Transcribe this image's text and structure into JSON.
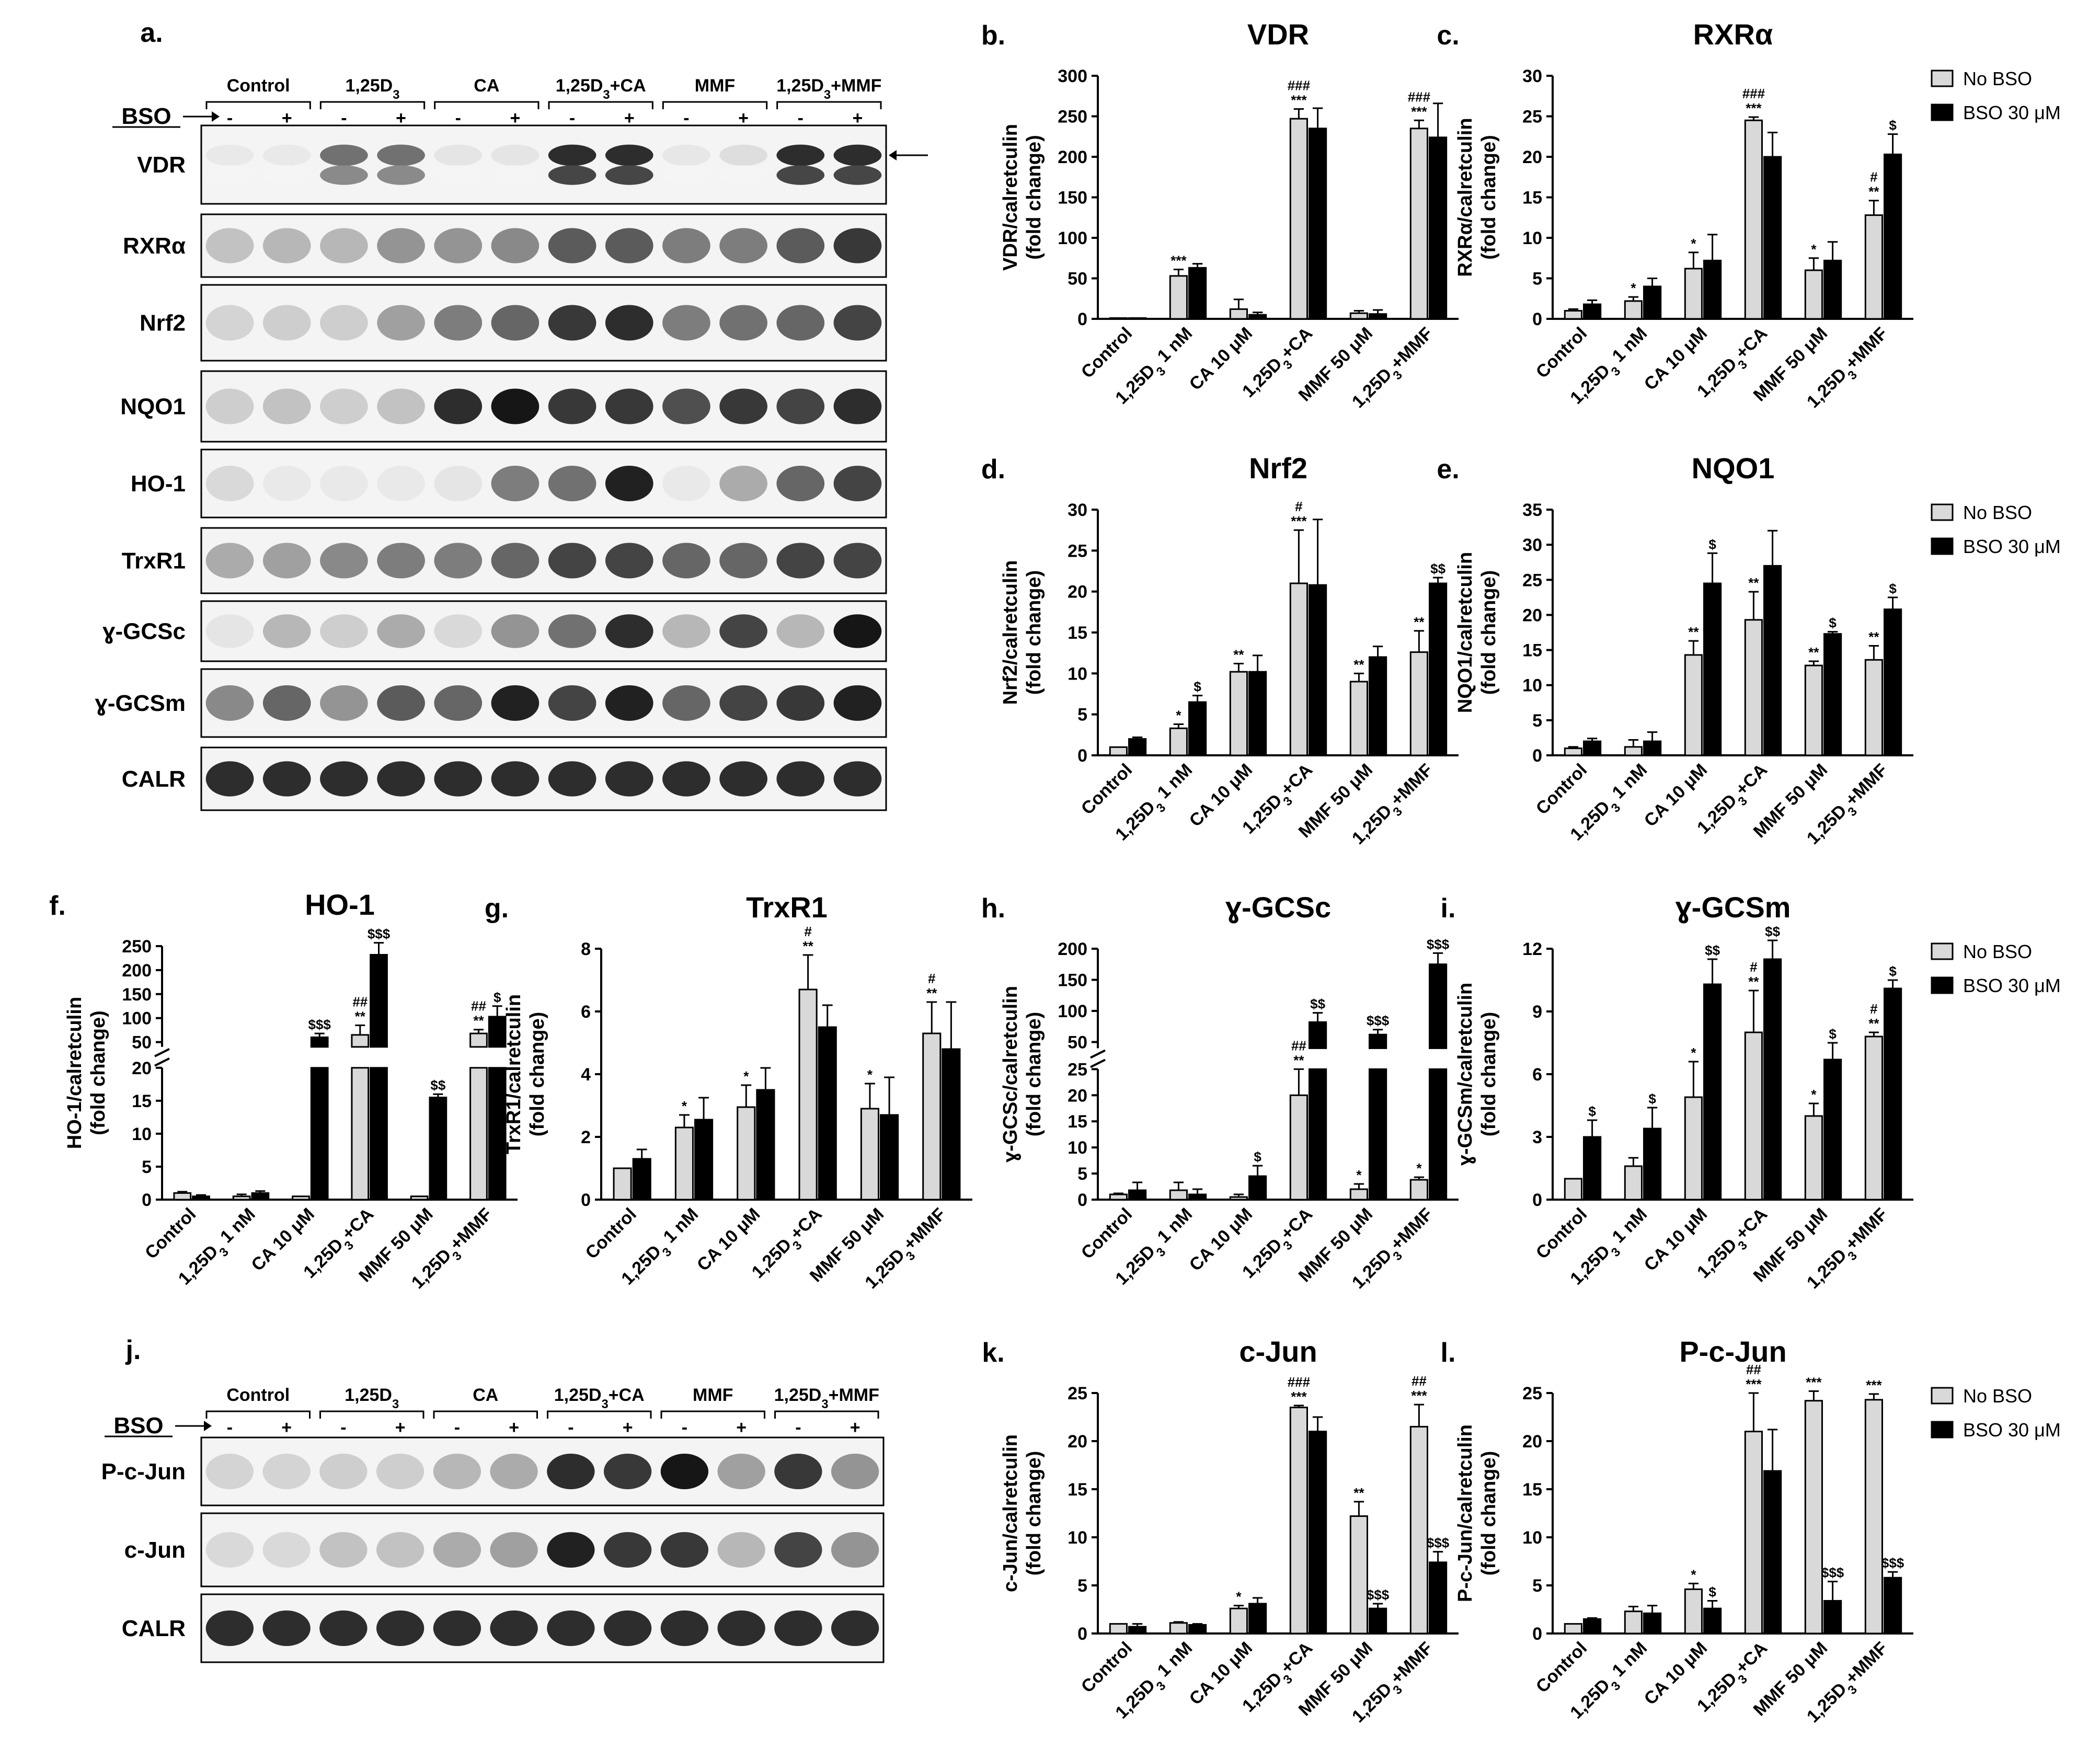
{
  "colors": {
    "no_bso": "#d9d9d9",
    "bso": "#000000",
    "axis": "#000000"
  },
  "legend": {
    "no_bso": "No BSO",
    "bso": "BSO 30 μM"
  },
  "blots": {
    "top": {
      "letter": "a.",
      "bso_label": "BSO",
      "groups": [
        "Control",
        "1,25D3",
        "CA",
        "1,25D3+CA",
        "MMF",
        "1,25D3+MMF"
      ],
      "signs": [
        "-",
        "+"
      ],
      "rows": [
        "VDR",
        "RXRα",
        "Nrf2",
        "NQO1",
        "HO-1",
        "TrxR1",
        "ɣ-GCSc",
        "ɣ-GCSm",
        "CALR"
      ]
    },
    "bottom": {
      "letter": "j.",
      "bso_label": "BSO",
      "groups": [
        "Control",
        "1,25D3",
        "CA",
        "1,25D3+CA",
        "MMF",
        "1,25D3+MMF"
      ],
      "signs": [
        "-",
        "+"
      ],
      "rows": [
        "P-c-Jun",
        "c-Jun",
        "CALR"
      ]
    }
  },
  "chart_data": [
    {
      "panel": "b.",
      "title": "VDR",
      "type": "bar",
      "ylabel": [
        "VDR/calretculin",
        "(fold change)"
      ],
      "categories": [
        "Control",
        "1,25D3 1 nM",
        "CA 10 μM",
        "1,25D3+CA",
        "MMF 50 μM",
        "1,25D3+MMF"
      ],
      "ylim": [
        0,
        300
      ],
      "yticks": [
        0,
        50,
        100,
        150,
        200,
        250,
        300
      ],
      "series": [
        {
          "name": "No BSO",
          "values": [
            1,
            53,
            12,
            247,
            7,
            235
          ],
          "errors": [
            0,
            8,
            12,
            12,
            3,
            10
          ],
          "sig": [
            [],
            [
              "***"
            ],
            [],
            [
              "###",
              "***"
            ],
            [],
            [
              "###",
              "***"
            ]
          ]
        },
        {
          "name": "BSO 30 μM",
          "values": [
            1,
            63,
            5,
            235,
            6,
            224
          ],
          "errors": [
            0,
            5,
            3,
            25,
            5,
            42
          ],
          "sig": [
            [],
            [],
            [],
            [],
            [],
            []
          ]
        }
      ]
    },
    {
      "panel": "c.",
      "title": "RXRα",
      "type": "bar",
      "ylabel": [
        "RXRα/calretculin",
        "(fold change)"
      ],
      "categories": [
        "Control",
        "1,25D3 1 nM",
        "CA 10 μM",
        "1,25D3+CA",
        "MMF 50 μM",
        "1,25D3+MMF"
      ],
      "ylim": [
        0,
        30
      ],
      "yticks": [
        0,
        5,
        10,
        15,
        20,
        25,
        30
      ],
      "legend": true,
      "series": [
        {
          "name": "No BSO",
          "values": [
            1,
            2.2,
            6.2,
            24.5,
            6.0,
            12.8
          ],
          "errors": [
            0.2,
            0.5,
            2.0,
            0.4,
            1.5,
            1.8
          ],
          "sig": [
            [],
            [
              "*"
            ],
            [
              "*"
            ],
            [
              "###",
              "***"
            ],
            [
              "*"
            ],
            [
              "#",
              "**"
            ]
          ]
        },
        {
          "name": "BSO 30 μM",
          "values": [
            1.8,
            4.0,
            7.2,
            20.0,
            7.2,
            20.3
          ],
          "errors": [
            0.5,
            1.0,
            3.2,
            3.0,
            2.3,
            2.5
          ],
          "sig": [
            [],
            [],
            [],
            [],
            [],
            [
              "$"
            ]
          ]
        }
      ]
    },
    {
      "panel": "d.",
      "title": "Nrf2",
      "type": "bar",
      "ylabel": [
        "Nrf2/calretculin",
        "(fold change)"
      ],
      "categories": [
        "Control",
        "1,25D3 1 nM",
        "CA 10 μM",
        "1,25D3+CA",
        "MMF 50 μM",
        "1,25D3+MMF"
      ],
      "ylim": [
        0,
        30
      ],
      "yticks": [
        0,
        5,
        10,
        15,
        20,
        25,
        30
      ],
      "series": [
        {
          "name": "No BSO",
          "values": [
            1,
            3.3,
            10.2,
            21.0,
            9.0,
            12.6
          ],
          "errors": [
            0,
            0.5,
            1.0,
            6.5,
            1.0,
            2.6
          ],
          "sig": [
            [],
            [
              "*"
            ],
            [
              "**"
            ],
            [
              "#",
              "***"
            ],
            [
              "**"
            ],
            [
              "**"
            ]
          ]
        },
        {
          "name": "BSO 30 μM",
          "values": [
            2.0,
            6.5,
            10.2,
            20.8,
            12.0,
            21.0
          ],
          "errors": [
            0.2,
            0.8,
            2.0,
            8.0,
            1.3,
            0.7
          ],
          "sig": [
            [],
            [
              "$"
            ],
            [],
            [],
            [],
            [
              "$$"
            ]
          ]
        }
      ]
    },
    {
      "panel": "e.",
      "title": "NQO1",
      "type": "bar",
      "ylabel": [
        "NQO1/calretculin",
        "(fold change)"
      ],
      "categories": [
        "Control",
        "1,25D3 1 nM",
        "CA 10 μM",
        "1,25D3+CA",
        "MMF 50 μM",
        "1,25D3+MMF"
      ],
      "ylim": [
        0,
        35
      ],
      "yticks": [
        0,
        5,
        10,
        15,
        20,
        25,
        30,
        35
      ],
      "legend": true,
      "series": [
        {
          "name": "No BSO",
          "values": [
            1,
            1.2,
            14.3,
            19.3,
            12.8,
            13.6
          ],
          "errors": [
            0.2,
            1.0,
            2.0,
            4.0,
            0.6,
            2.0
          ],
          "sig": [
            [],
            [],
            [
              "**"
            ],
            [
              "**"
            ],
            [
              "**"
            ],
            [
              "**"
            ]
          ]
        },
        {
          "name": "BSO 30 μM",
          "values": [
            2.0,
            2.0,
            24.5,
            27.0,
            17.3,
            20.8
          ],
          "errors": [
            0.4,
            1.3,
            4.3,
            5.0,
            0.3,
            1.7
          ],
          "sig": [
            [],
            [],
            [
              "$"
            ],
            [],
            [
              "$"
            ],
            [
              "$"
            ]
          ]
        }
      ]
    },
    {
      "panel": "f.",
      "title": "HO-1",
      "type": "bar-broken",
      "ylabel": [
        "HO-1/calretculin",
        "(fold change)"
      ],
      "categories": [
        "Control",
        "1,25D3 1 nM",
        "CA 10 μM",
        "1,25D3+CA",
        "MMF 50 μM",
        "1,25D3+MMF"
      ],
      "lower_ticks": [
        0,
        5,
        10,
        15,
        20
      ],
      "upper_ticks": [
        50,
        100,
        150,
        200,
        250
      ],
      "break": [
        20,
        40
      ],
      "series": [
        {
          "name": "No BSO",
          "values": [
            1,
            0.5,
            0.5,
            65,
            0.5,
            68
          ],
          "errors": [
            0.2,
            0.3,
            0,
            20,
            0,
            8
          ],
          "sig": [
            [],
            [],
            [],
            [
              "##",
              "**"
            ],
            [],
            [
              "##",
              "**"
            ]
          ]
        },
        {
          "name": "BSO 30 μM",
          "values": [
            0.5,
            1.0,
            60,
            232,
            15.5,
            103
          ],
          "errors": [
            0.2,
            0.3,
            8,
            25,
            0.5,
            22
          ],
          "sig": [
            [],
            [],
            [
              "$$$"
            ],
            [
              "$$$"
            ],
            [
              "$$"
            ],
            [
              "$"
            ]
          ]
        }
      ]
    },
    {
      "panel": "g.",
      "title": "TrxR1",
      "type": "bar",
      "ylabel": [
        "TrxR1/calretculin",
        "(fold change)"
      ],
      "categories": [
        "Control",
        "1,25D3 1 nM",
        "CA 10 μM",
        "1,25D3+CA",
        "MMF 50 μM",
        "1,25D3+MMF"
      ],
      "ylim": [
        0,
        8
      ],
      "yticks": [
        0,
        2,
        4,
        6,
        8
      ],
      "series": [
        {
          "name": "No BSO",
          "values": [
            1,
            2.3,
            2.95,
            6.7,
            2.9,
            5.3
          ],
          "errors": [
            0,
            0.4,
            0.7,
            1.1,
            0.8,
            1.0
          ],
          "sig": [
            [],
            [
              "*"
            ],
            [
              "*"
            ],
            [
              "#",
              "**"
            ],
            [
              "*"
            ],
            [
              "#",
              "**"
            ]
          ]
        },
        {
          "name": "BSO 30 μM",
          "values": [
            1.3,
            2.55,
            3.5,
            5.5,
            2.7,
            4.8
          ],
          "errors": [
            0.3,
            0.7,
            0.7,
            0.7,
            1.2,
            1.5
          ],
          "sig": [
            [],
            [],
            [],
            [],
            [],
            []
          ]
        }
      ]
    },
    {
      "panel": "h.",
      "title": "ɣ-GCSc",
      "type": "bar-broken",
      "ylabel": [
        "ɣ-GCSc/calretculin",
        "(fold change)"
      ],
      "categories": [
        "Control",
        "1,25D3 1 nM",
        "CA 10 μM",
        "1,25D3+CA",
        "MMF 50 μM",
        "1,25D3+MMF"
      ],
      "lower_ticks": [
        0,
        5,
        10,
        15,
        20,
        25
      ],
      "upper_ticks": [
        50,
        100,
        150,
        200
      ],
      "break": [
        25,
        40
      ],
      "series": [
        {
          "name": "No BSO",
          "values": [
            1,
            1.8,
            0.5,
            20,
            2.0,
            3.8
          ],
          "errors": [
            0.2,
            1.5,
            0.5,
            5,
            1.0,
            0.5
          ],
          "sig": [
            [],
            [],
            [],
            [
              "##",
              "**"
            ],
            [
              "*"
            ],
            [
              "*"
            ]
          ]
        },
        {
          "name": "BSO 30 μM",
          "values": [
            1.8,
            1.0,
            4.5,
            82,
            62,
            175
          ],
          "errors": [
            1.5,
            1.0,
            2.0,
            15,
            8,
            18
          ],
          "sig": [
            [],
            [],
            [
              "$"
            ],
            [
              "$$"
            ],
            [
              "$$$"
            ],
            [
              "$$$"
            ]
          ]
        }
      ]
    },
    {
      "panel": "i.",
      "title": "ɣ-GCSm",
      "type": "bar",
      "ylabel": [
        "ɣ-GCSm/calretculin",
        "(fold change)"
      ],
      "categories": [
        "Control",
        "1,25D3 1 nM",
        "CA 10 μM",
        "1,25D3+CA",
        "MMF 50 μM",
        "1,25D3+MMF"
      ],
      "ylim": [
        0,
        12
      ],
      "yticks": [
        0,
        3,
        6,
        9,
        12
      ],
      "legend": true,
      "series": [
        {
          "name": "No BSO",
          "values": [
            1,
            1.6,
            4.9,
            8.0,
            4.0,
            7.8
          ],
          "errors": [
            0,
            0.4,
            1.7,
            2.0,
            0.6,
            0.2
          ],
          "sig": [
            [],
            [],
            [
              "*"
            ],
            [
              "#",
              "**"
            ],
            [
              "*"
            ],
            [
              "#",
              "**"
            ]
          ]
        },
        {
          "name": "BSO 30 μM",
          "values": [
            3.0,
            3.4,
            10.3,
            11.5,
            6.7,
            10.1
          ],
          "errors": [
            0.8,
            1.0,
            1.2,
            0.9,
            0.8,
            0.4
          ],
          "sig": [
            [
              "$"
            ],
            [
              "$"
            ],
            [
              "$$"
            ],
            [
              "$$"
            ],
            [
              "$"
            ],
            [
              "$"
            ]
          ]
        }
      ]
    },
    {
      "panel": "k.",
      "title": "c-Jun",
      "type": "bar",
      "ylabel": [
        "c-Jun/calretculin",
        "(fold change)"
      ],
      "categories": [
        "Control",
        "1,25D3 1 nM",
        "CA 10 μM",
        "1,25D3+CA",
        "MMF 50 μM",
        "1,25D3+MMF"
      ],
      "ylim": [
        0,
        25
      ],
      "yticks": [
        0,
        5,
        10,
        15,
        20,
        25
      ],
      "series": [
        {
          "name": "No BSO",
          "values": [
            1,
            1.1,
            2.6,
            23.5,
            12.2,
            21.5
          ],
          "errors": [
            0,
            0.1,
            0.3,
            0.2,
            1.5,
            2.3
          ],
          "sig": [
            [],
            [],
            [
              "*"
            ],
            [
              "###",
              "***"
            ],
            [
              "**"
            ],
            [
              "##",
              "***"
            ]
          ]
        },
        {
          "name": "BSO 30 μM",
          "values": [
            0.7,
            0.9,
            3.1,
            21.0,
            2.6,
            7.4
          ],
          "errors": [
            0.3,
            0.1,
            0.6,
            1.5,
            0.5,
            1.1
          ],
          "sig": [
            [],
            [],
            [],
            [],
            [
              "$$$"
            ],
            [
              "$$$"
            ]
          ]
        }
      ]
    },
    {
      "panel": "l.",
      "title": "P-c-Jun",
      "type": "bar",
      "ylabel": [
        "P-c-Jun/calretculin",
        "(fold change)"
      ],
      "categories": [
        "Control",
        "1,25D3 1 nM",
        "CA 10 μM",
        "1,25D3+CA",
        "MMF 50 μM",
        "1,25D3+MMF"
      ],
      "ylim": [
        0,
        25
      ],
      "yticks": [
        0,
        5,
        10,
        15,
        20,
        25
      ],
      "legend": true,
      "series": [
        {
          "name": "No BSO",
          "values": [
            1,
            2.3,
            4.6,
            21.0,
            24.2,
            24.3
          ],
          "errors": [
            0,
            0.5,
            0.6,
            4.0,
            1.0,
            0.6
          ],
          "sig": [
            [],
            [],
            [
              "*"
            ],
            [
              "##",
              "***"
            ],
            [
              "***"
            ],
            [
              "***"
            ]
          ]
        },
        {
          "name": "BSO 30 μM",
          "values": [
            1.5,
            2.1,
            2.6,
            16.9,
            3.4,
            5.8
          ],
          "errors": [
            0.1,
            0.8,
            0.8,
            4.3,
            2.0,
            0.6
          ],
          "sig": [
            [],
            [],
            [
              "$"
            ],
            [],
            [
              "$$$"
            ],
            [
              "$$$"
            ]
          ]
        }
      ]
    }
  ]
}
